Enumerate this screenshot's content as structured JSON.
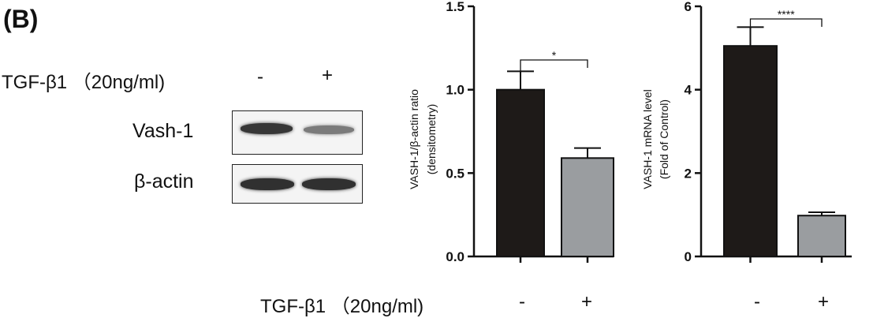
{
  "panel_label": "(B)",
  "western_blot": {
    "treatment_label": "TGF-β1 （20ng/ml)",
    "lanes": [
      "-",
      "+"
    ],
    "rows": [
      {
        "label": "Vash-1",
        "band_intensity": [
          0.9,
          0.45
        ]
      },
      {
        "label": "β-actin",
        "band_intensity": [
          0.95,
          0.95
        ]
      }
    ]
  },
  "bottom_treatment": {
    "label": "TGF-β1 （20ng/ml)",
    "chart1_categories": [
      "-",
      "+"
    ],
    "chart2_categories": [
      "-",
      "+"
    ]
  },
  "colors": {
    "control_bar": "#1e1a18",
    "treated_bar": "#9a9da0",
    "axis": "#111111"
  },
  "chart_data": [
    {
      "type": "bar",
      "categories": [
        "-",
        "+"
      ],
      "values": [
        1.0,
        0.59
      ],
      "errors": [
        0.11,
        0.06
      ],
      "ylabel": "VASH-1/β-actin ratio (densitometry)",
      "ylabel_lines": [
        "VASH-1/β-actin ratio",
        "(densitometry)"
      ],
      "ylim": [
        0,
        1.5
      ],
      "yticks": [
        "0.0",
        "0.5",
        "1.0",
        "1.5"
      ],
      "significance": "*",
      "bar_colors": [
        "#1e1a18",
        "#9a9da0"
      ]
    },
    {
      "type": "bar",
      "categories": [
        "-",
        "+"
      ],
      "values": [
        5.05,
        0.98
      ],
      "errors": [
        0.45,
        0.08
      ],
      "ylabel": "VASH-1 mRNA level (Fold of Control)",
      "ylabel_lines": [
        "VASH-1 mRNA level",
        "(Fold of Control)"
      ],
      "ylim": [
        0,
        6
      ],
      "yticks": [
        "0",
        "2",
        "4",
        "6"
      ],
      "significance": "****",
      "bar_colors": [
        "#1e1a18",
        "#9a9da0"
      ]
    }
  ]
}
